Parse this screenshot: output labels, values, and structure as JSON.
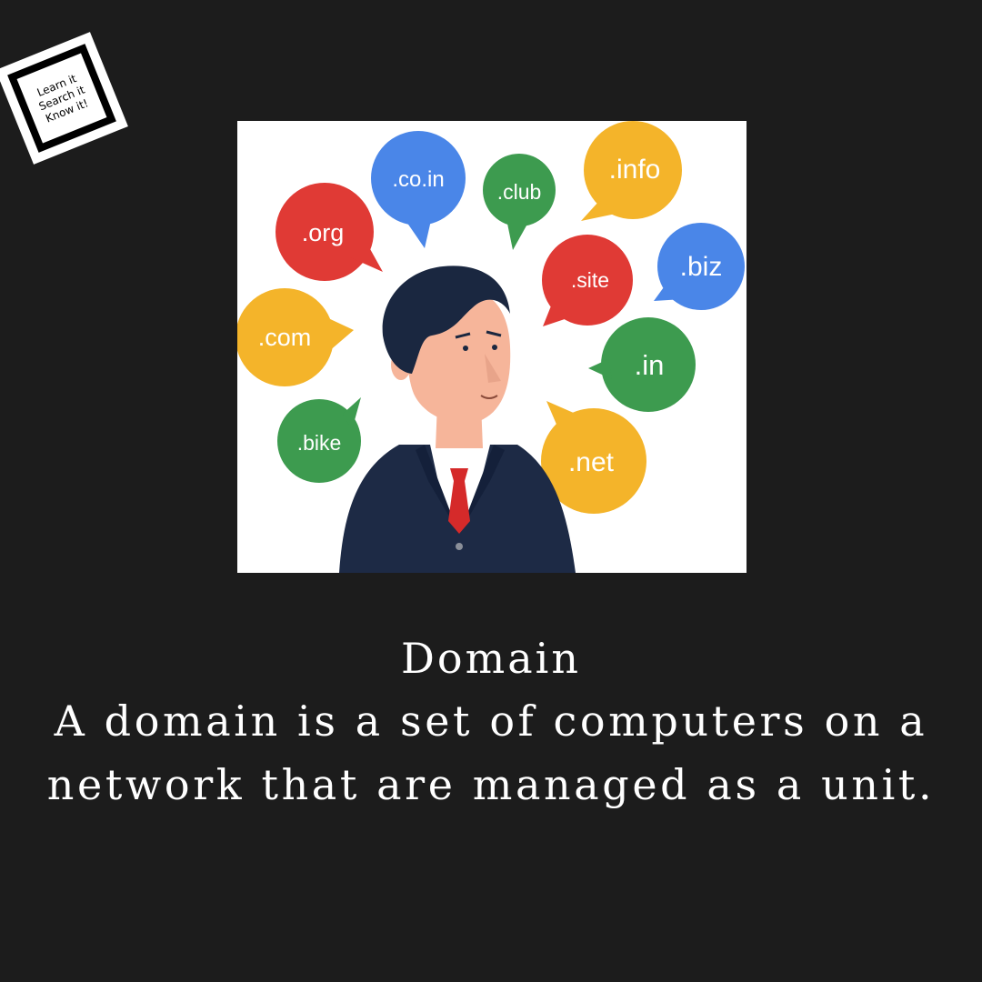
{
  "logo": {
    "lines": [
      "Learn it",
      "Search it",
      "Know it!"
    ]
  },
  "illustration": {
    "bubbles": [
      {
        "label": ".co.in",
        "color": "#4a86e8"
      },
      {
        "label": ".club",
        "color": "#3d9b4f"
      },
      {
        "label": ".info",
        "color": "#f4b42a"
      },
      {
        "label": ".org",
        "color": "#e03a35"
      },
      {
        "label": ".site",
        "color": "#e03a35"
      },
      {
        "label": ".biz",
        "color": "#4a86e8"
      },
      {
        "label": ".com",
        "color": "#f4b42a"
      },
      {
        "label": ".in",
        "color": "#3d9b4f"
      },
      {
        "label": ".bike",
        "color": "#3d9b4f"
      },
      {
        "label": ".net",
        "color": "#f4b42a"
      }
    ]
  },
  "caption": {
    "title": "Domain",
    "body": "A domain is a set of computers on a network that are managed as a unit."
  }
}
